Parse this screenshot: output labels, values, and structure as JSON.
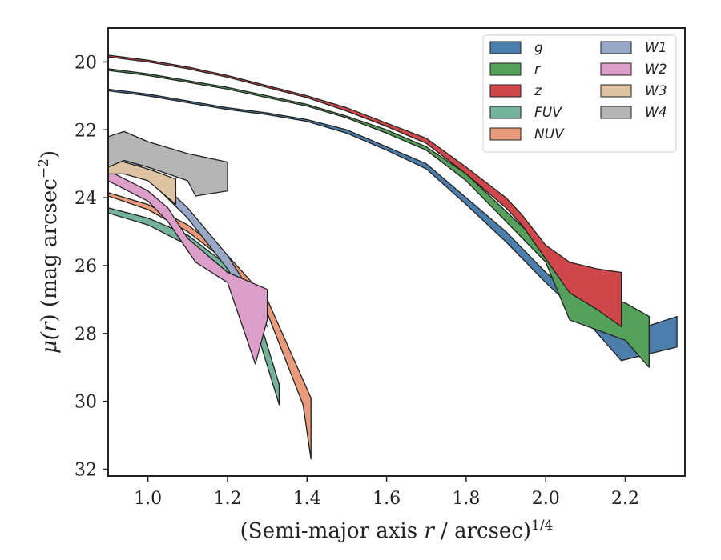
{
  "chart_data": {
    "type": "area",
    "xlabel": {
      "prefix": "(Semi-major axis ",
      "var": "r",
      "mid": " / arcsec)",
      "sup": "1/4"
    },
    "ylabel": {
      "pre": "μ(",
      "var": "r",
      "post": ") (mag arcsec",
      "sup": "−2",
      "end": ")"
    },
    "xlim": [
      0.9,
      2.35
    ],
    "ylim": [
      32.2,
      19.0
    ],
    "y_inverted": true,
    "xticks": [
      1.0,
      1.2,
      1.4,
      1.6,
      1.8,
      2.0,
      2.2
    ],
    "xtick_labels": [
      "1.0",
      "1.2",
      "1.4",
      "1.6",
      "1.8",
      "2.0",
      "2.2"
    ],
    "yticks": [
      20,
      22,
      24,
      26,
      28,
      30,
      32
    ],
    "ytick_labels": [
      "20",
      "22",
      "24",
      "26",
      "28",
      "30",
      "32"
    ],
    "grid": false,
    "legend_placement": "top-right",
    "legend_columns": 2,
    "series": [
      {
        "name": "g",
        "color": "#4c7eac",
        "upper": [
          [
            0.9,
            20.8
          ],
          [
            1.0,
            20.95
          ],
          [
            1.1,
            21.15
          ],
          [
            1.2,
            21.35
          ],
          [
            1.3,
            21.5
          ],
          [
            1.4,
            21.7
          ],
          [
            1.5,
            22.0
          ],
          [
            1.6,
            22.5
          ],
          [
            1.7,
            23.0
          ],
          [
            1.8,
            24.0
          ],
          [
            1.9,
            25.0
          ],
          [
            2.0,
            26.2
          ],
          [
            2.1,
            27.2
          ],
          [
            2.2,
            28.0
          ],
          [
            2.33,
            27.5
          ]
        ],
        "lower": [
          [
            0.9,
            20.85
          ],
          [
            1.0,
            21.0
          ],
          [
            1.1,
            21.2
          ],
          [
            1.2,
            21.4
          ],
          [
            1.3,
            21.55
          ],
          [
            1.4,
            21.75
          ],
          [
            1.5,
            22.1
          ],
          [
            1.6,
            22.6
          ],
          [
            1.7,
            23.15
          ],
          [
            1.8,
            24.2
          ],
          [
            1.9,
            25.3
          ],
          [
            2.0,
            26.5
          ],
          [
            2.1,
            27.6
          ],
          [
            2.19,
            28.8
          ],
          [
            2.33,
            28.4
          ]
        ]
      },
      {
        "name": "r",
        "color": "#55a05a",
        "upper": [
          [
            0.9,
            20.2
          ],
          [
            1.0,
            20.35
          ],
          [
            1.1,
            20.55
          ],
          [
            1.2,
            20.75
          ],
          [
            1.3,
            21.0
          ],
          [
            1.4,
            21.25
          ],
          [
            1.5,
            21.6
          ],
          [
            1.6,
            22.0
          ],
          [
            1.7,
            22.5
          ],
          [
            1.8,
            23.3
          ],
          [
            1.9,
            24.4
          ],
          [
            2.0,
            25.5
          ],
          [
            2.06,
            26.7
          ],
          [
            2.2,
            27.1
          ],
          [
            2.26,
            27.5
          ]
        ],
        "lower": [
          [
            0.9,
            20.25
          ],
          [
            1.0,
            20.4
          ],
          [
            1.1,
            20.6
          ],
          [
            1.2,
            20.8
          ],
          [
            1.3,
            21.05
          ],
          [
            1.4,
            21.3
          ],
          [
            1.5,
            21.65
          ],
          [
            1.6,
            22.1
          ],
          [
            1.7,
            22.6
          ],
          [
            1.8,
            23.5
          ],
          [
            1.9,
            24.7
          ],
          [
            2.0,
            25.9
          ],
          [
            2.06,
            27.6
          ],
          [
            2.2,
            28.2
          ],
          [
            2.26,
            29.0
          ]
        ]
      },
      {
        "name": "z",
        "color": "#d0474b",
        "upper": [
          [
            0.9,
            19.8
          ],
          [
            1.0,
            19.95
          ],
          [
            1.1,
            20.15
          ],
          [
            1.2,
            20.4
          ],
          [
            1.3,
            20.7
          ],
          [
            1.4,
            21.0
          ],
          [
            1.5,
            21.35
          ],
          [
            1.6,
            21.8
          ],
          [
            1.7,
            22.25
          ],
          [
            1.8,
            23.1
          ],
          [
            1.9,
            24.0
          ],
          [
            1.94,
            24.5
          ],
          [
            2.0,
            25.4
          ],
          [
            2.06,
            25.9
          ],
          [
            2.13,
            26.1
          ],
          [
            2.19,
            26.2
          ]
        ],
        "lower": [
          [
            0.9,
            19.85
          ],
          [
            1.0,
            20.0
          ],
          [
            1.1,
            20.2
          ],
          [
            1.2,
            20.45
          ],
          [
            1.3,
            20.75
          ],
          [
            1.4,
            21.05
          ],
          [
            1.5,
            21.45
          ],
          [
            1.6,
            21.9
          ],
          [
            1.7,
            22.4
          ],
          [
            1.8,
            23.3
          ],
          [
            1.9,
            24.3
          ],
          [
            1.94,
            24.8
          ],
          [
            2.0,
            25.8
          ],
          [
            2.06,
            26.8
          ],
          [
            2.13,
            27.3
          ],
          [
            2.19,
            27.8
          ]
        ]
      },
      {
        "name": "FUV",
        "color": "#76b39d",
        "upper": [
          [
            0.9,
            24.3
          ],
          [
            1.0,
            24.6
          ],
          [
            1.1,
            25.1
          ],
          [
            1.2,
            26.0
          ],
          [
            1.27,
            27.2
          ],
          [
            1.33,
            29.5
          ]
        ],
        "lower": [
          [
            0.9,
            24.45
          ],
          [
            1.0,
            24.8
          ],
          [
            1.1,
            25.4
          ],
          [
            1.2,
            26.4
          ],
          [
            1.27,
            27.8
          ],
          [
            1.33,
            30.1
          ]
        ]
      },
      {
        "name": "NUV",
        "color": "#e89a7a",
        "upper": [
          [
            0.9,
            23.85
          ],
          [
            1.0,
            24.2
          ],
          [
            1.1,
            24.8
          ],
          [
            1.2,
            25.7
          ],
          [
            1.3,
            27.0
          ],
          [
            1.41,
            29.9
          ]
        ],
        "lower": [
          [
            0.9,
            23.95
          ],
          [
            1.0,
            24.35
          ],
          [
            1.1,
            25.0
          ],
          [
            1.2,
            25.9
          ],
          [
            1.3,
            27.4
          ],
          [
            1.39,
            30.1
          ],
          [
            1.41,
            31.7
          ]
        ]
      },
      {
        "name": "W1",
        "color": "#9aa8c7",
        "upper": [
          [
            0.9,
            23.0
          ],
          [
            0.94,
            22.8
          ],
          [
            1.0,
            23.2
          ],
          [
            1.1,
            24.3
          ],
          [
            1.2,
            25.7
          ],
          [
            1.27,
            27.0
          ],
          [
            1.3,
            27.8
          ]
        ],
        "lower": [
          [
            0.9,
            23.2
          ],
          [
            0.94,
            23.0
          ],
          [
            1.0,
            23.45
          ],
          [
            1.1,
            24.6
          ],
          [
            1.2,
            26.1
          ],
          [
            1.27,
            27.4
          ],
          [
            1.3,
            27.8
          ]
        ]
      },
      {
        "name": "W2",
        "color": "#dc9fc9",
        "upper": [
          [
            0.9,
            23.2
          ],
          [
            1.0,
            23.8
          ],
          [
            1.05,
            24.3
          ],
          [
            1.1,
            25.2
          ],
          [
            1.2,
            26.2
          ],
          [
            1.3,
            26.7
          ]
        ],
        "lower": [
          [
            0.9,
            23.5
          ],
          [
            1.0,
            24.1
          ],
          [
            1.05,
            24.7
          ],
          [
            1.12,
            25.9
          ],
          [
            1.2,
            26.5
          ],
          [
            1.27,
            28.9
          ],
          [
            1.3,
            27.6
          ]
        ]
      },
      {
        "name": "W3",
        "color": "#dec4a2",
        "upper": [
          [
            0.9,
            22.6
          ],
          [
            0.94,
            22.95
          ],
          [
            1.0,
            23.15
          ],
          [
            1.07,
            23.45
          ]
        ],
        "lower": [
          [
            0.9,
            23.3
          ],
          [
            0.94,
            23.3
          ],
          [
            1.0,
            23.5
          ],
          [
            1.07,
            24.2
          ]
        ]
      },
      {
        "name": "W4",
        "color": "#b5b5b5",
        "upper": [
          [
            0.9,
            22.2
          ],
          [
            0.94,
            22.05
          ],
          [
            1.0,
            22.35
          ],
          [
            1.1,
            22.7
          ],
          [
            1.2,
            22.95
          ]
        ],
        "lower": [
          [
            0.9,
            23.1
          ],
          [
            0.94,
            22.9
          ],
          [
            1.0,
            23.1
          ],
          [
            1.1,
            23.5
          ],
          [
            1.12,
            23.95
          ],
          [
            1.2,
            23.8
          ]
        ]
      }
    ]
  }
}
